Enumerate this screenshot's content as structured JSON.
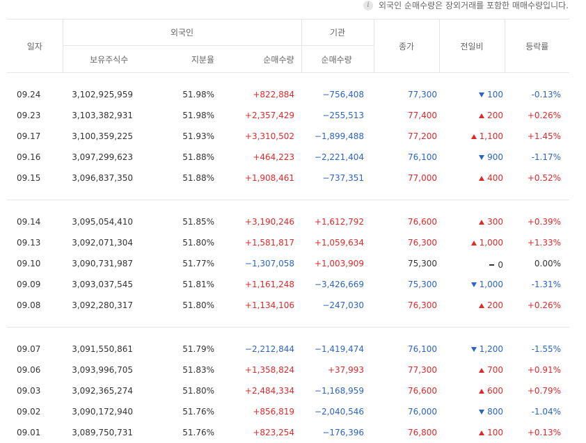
{
  "notice": "외국인 순매수량은 장외거래를 포함한 매매수량입니다.",
  "headers": {
    "date": "일자",
    "foreign": "외국인",
    "institution": "기관",
    "holdings": "보유주식수",
    "ratio": "지분율",
    "net_buy": "순매수량",
    "inst_net_buy": "순매수량",
    "close": "종가",
    "change": "전일비",
    "rate": "등락률"
  },
  "colors": {
    "up": "#e12828",
    "down": "#2a64c5",
    "flat": "#333333"
  },
  "groups": [
    [
      {
        "date": "09.24",
        "holdings": "3,102,925,959",
        "ratio": "51.98%",
        "foreign": "+822,884",
        "foreign_dir": "up",
        "inst": "−756,408",
        "inst_dir": "down",
        "close": "77,300",
        "close_dir": "down",
        "change": "100",
        "change_dir": "down",
        "rate": "-0.13%"
      },
      {
        "date": "09.23",
        "holdings": "3,103,382,931",
        "ratio": "51.98%",
        "foreign": "+2,357,429",
        "foreign_dir": "up",
        "inst": "−255,513",
        "inst_dir": "down",
        "close": "77,400",
        "close_dir": "up",
        "change": "200",
        "change_dir": "up",
        "rate": "+0.26%"
      },
      {
        "date": "09.17",
        "holdings": "3,100,359,225",
        "ratio": "51.93%",
        "foreign": "+3,310,502",
        "foreign_dir": "up",
        "inst": "−1,899,488",
        "inst_dir": "down",
        "close": "77,200",
        "close_dir": "up",
        "change": "1,100",
        "change_dir": "up",
        "rate": "+1.45%"
      },
      {
        "date": "09.16",
        "holdings": "3,097,299,623",
        "ratio": "51.88%",
        "foreign": "+464,223",
        "foreign_dir": "up",
        "inst": "−2,221,404",
        "inst_dir": "down",
        "close": "76,100",
        "close_dir": "down",
        "change": "900",
        "change_dir": "down",
        "rate": "-1.17%"
      },
      {
        "date": "09.15",
        "holdings": "3,096,837,350",
        "ratio": "51.88%",
        "foreign": "+1,908,461",
        "foreign_dir": "up",
        "inst": "−737,351",
        "inst_dir": "down",
        "close": "77,000",
        "close_dir": "up",
        "change": "400",
        "change_dir": "up",
        "rate": "+0.52%"
      }
    ],
    [
      {
        "date": "09.14",
        "holdings": "3,095,054,410",
        "ratio": "51.85%",
        "foreign": "+3,190,246",
        "foreign_dir": "up",
        "inst": "+1,612,792",
        "inst_dir": "up",
        "close": "76,600",
        "close_dir": "up",
        "change": "300",
        "change_dir": "up",
        "rate": "+0.39%"
      },
      {
        "date": "09.13",
        "holdings": "3,092,071,304",
        "ratio": "51.80%",
        "foreign": "+1,581,817",
        "foreign_dir": "up",
        "inst": "+1,059,634",
        "inst_dir": "up",
        "close": "76,300",
        "close_dir": "up",
        "change": "1,000",
        "change_dir": "up",
        "rate": "+1.33%"
      },
      {
        "date": "09.10",
        "holdings": "3,090,731,987",
        "ratio": "51.77%",
        "foreign": "−1,307,058",
        "foreign_dir": "down",
        "inst": "+1,003,909",
        "inst_dir": "up",
        "close": "75,300",
        "close_dir": "flat",
        "change": "0",
        "change_dir": "flat",
        "rate": "0.00%"
      },
      {
        "date": "09.09",
        "holdings": "3,093,037,545",
        "ratio": "51.81%",
        "foreign": "+1,161,248",
        "foreign_dir": "up",
        "inst": "−3,426,669",
        "inst_dir": "down",
        "close": "75,300",
        "close_dir": "down",
        "change": "1,000",
        "change_dir": "down",
        "rate": "-1.31%"
      },
      {
        "date": "09.08",
        "holdings": "3,092,280,317",
        "ratio": "51.80%",
        "foreign": "+1,134,106",
        "foreign_dir": "up",
        "inst": "−247,030",
        "inst_dir": "down",
        "close": "76,300",
        "close_dir": "up",
        "change": "200",
        "change_dir": "up",
        "rate": "+0.26%"
      }
    ],
    [
      {
        "date": "09.07",
        "holdings": "3,091,550,861",
        "ratio": "51.79%",
        "foreign": "−2,212,844",
        "foreign_dir": "down",
        "inst": "−1,419,474",
        "inst_dir": "down",
        "close": "76,100",
        "close_dir": "down",
        "change": "1,200",
        "change_dir": "down",
        "rate": "-1.55%"
      },
      {
        "date": "09.06",
        "holdings": "3,093,996,705",
        "ratio": "51.83%",
        "foreign": "+1,358,824",
        "foreign_dir": "up",
        "inst": "+37,993",
        "inst_dir": "up",
        "close": "77,300",
        "close_dir": "up",
        "change": "700",
        "change_dir": "up",
        "rate": "+0.91%"
      },
      {
        "date": "09.03",
        "holdings": "3,092,365,274",
        "ratio": "51.80%",
        "foreign": "+2,484,334",
        "foreign_dir": "up",
        "inst": "−1,168,959",
        "inst_dir": "down",
        "close": "76,600",
        "close_dir": "up",
        "change": "600",
        "change_dir": "up",
        "rate": "+0.79%"
      },
      {
        "date": "09.02",
        "holdings": "3,090,172,940",
        "ratio": "51.76%",
        "foreign": "+856,819",
        "foreign_dir": "up",
        "inst": "−2,040,546",
        "inst_dir": "down",
        "close": "76,000",
        "close_dir": "down",
        "change": "800",
        "change_dir": "down",
        "rate": "-1.04%"
      },
      {
        "date": "09.01",
        "holdings": "3,089,750,731",
        "ratio": "51.76%",
        "foreign": "+823,254",
        "foreign_dir": "up",
        "inst": "−176,396",
        "inst_dir": "down",
        "close": "76,800",
        "close_dir": "up",
        "change": "100",
        "change_dir": "up",
        "rate": "+0.13%"
      }
    ]
  ]
}
